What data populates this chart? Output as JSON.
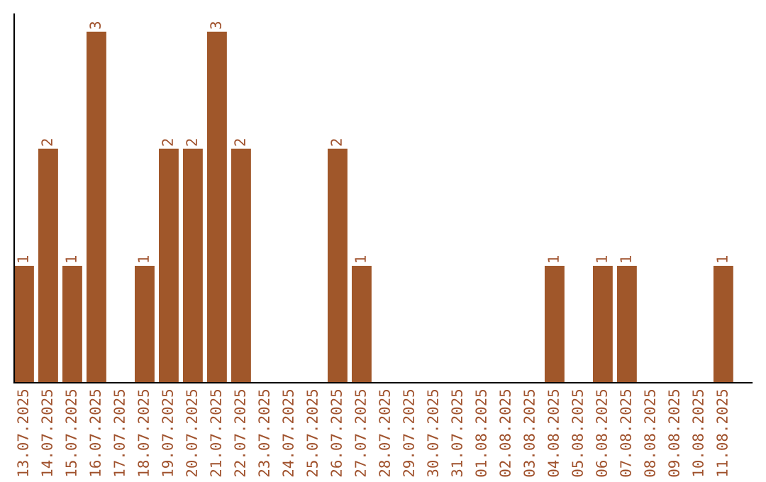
{
  "chart_data": {
    "type": "bar",
    "categories": [
      "13.07.2025",
      "14.07.2025",
      "15.07.2025",
      "16.07.2025",
      "17.07.2025",
      "18.07.2025",
      "19.07.2025",
      "20.07.2025",
      "21.07.2025",
      "22.07.2025",
      "23.07.2025",
      "24.07.2025",
      "25.07.2025",
      "26.07.2025",
      "27.07.2025",
      "28.07.2025",
      "29.07.2025",
      "30.07.2025",
      "31.07.2025",
      "01.08.2025",
      "02.08.2025",
      "03.08.2025",
      "04.08.2025",
      "05.08.2025",
      "06.08.2025",
      "07.08.2025",
      "08.08.2025",
      "09.08.2025",
      "10.08.2025",
      "11.08.2025"
    ],
    "values": [
      1,
      2,
      1,
      3,
      0,
      1,
      2,
      2,
      3,
      2,
      0,
      0,
      0,
      2,
      1,
      0,
      0,
      0,
      0,
      0,
      0,
      0,
      1,
      0,
      1,
      1,
      0,
      0,
      0,
      1
    ],
    "value_labels": [
      "1",
      "2",
      "1",
      "3",
      null,
      "1",
      "2",
      "2",
      "3",
      "2",
      null,
      null,
      null,
      "2",
      "1",
      null,
      null,
      null,
      null,
      null,
      null,
      null,
      "1",
      null,
      "1",
      "1",
      null,
      null,
      null,
      "1"
    ],
    "color": "#a0572a",
    "tick_labels": "x",
    "grid": false,
    "legend": false
  }
}
